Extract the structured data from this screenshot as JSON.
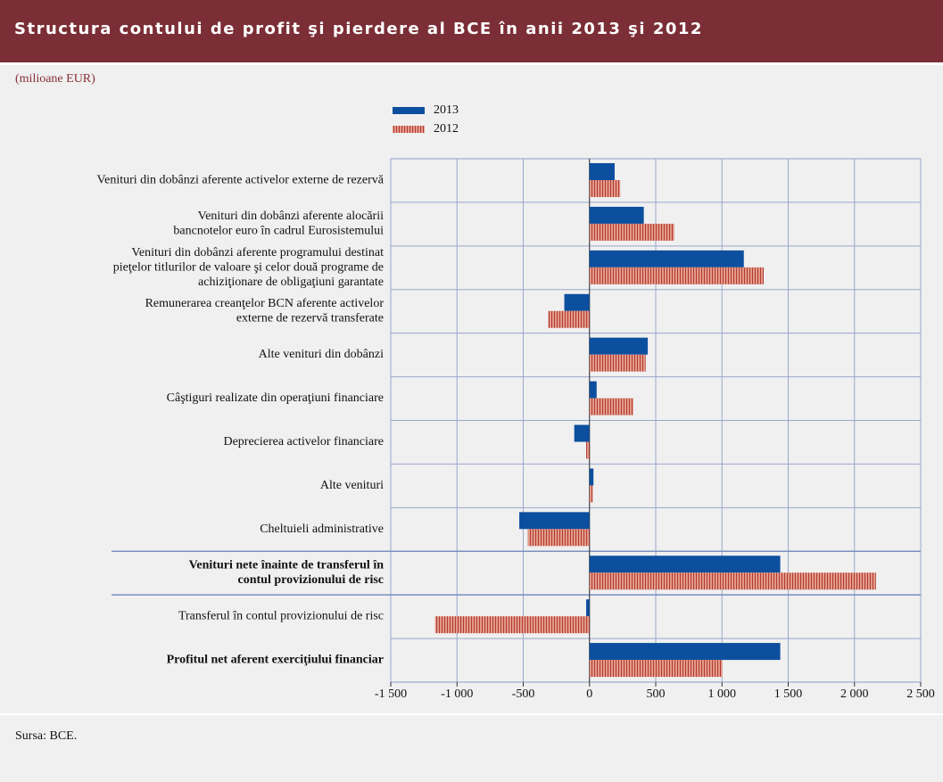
{
  "chart_data": {
    "type": "hbar",
    "title": "Structura contului de profit şi pierdere al BCE în anii 2013 şi 2012",
    "subtitle": "(milioane EUR)",
    "source": "Sursa: BCE.",
    "categories": [
      "Venituri din dobânzi aferente activelor externe de rezervă",
      "Venituri din dobânzi aferente alocării\nbancnotelor euro în cadrul Eurosistemului",
      "Venituri din dobânzi aferente programului destinat\npieţelor titlurilor de valoare şi celor două programe de\nachiziţionare de obligaţiuni garantate",
      "Remunerarea creanţelor BCN aferente activelor\nexterne de rezervă transferate",
      "Alte venituri din dobânzi",
      "Câştiguri realizate din operaţiuni financiare",
      "Deprecierea activelor financiare",
      "Alte venituri",
      "Cheltuieli administrative",
      "Venituri nete înainte de transferul în\ncontul provizionului de risc",
      "Transferul în contul provizionului de risc",
      "Profitul net aferent exerciţiului financiar"
    ],
    "bold_categories": [
      9,
      11
    ],
    "series": [
      {
        "name": "2013",
        "color": "#0c4f9e",
        "values": [
          190,
          410,
          1165,
          -190,
          440,
          54,
          -115,
          30,
          -530,
          1440,
          -25,
          1440
        ]
      },
      {
        "name": "2012",
        "color": "#e39a87",
        "pattern": "vertical-stripes",
        "values": [
          232,
          640,
          1315,
          -312,
          424,
          330,
          -25,
          25,
          -465,
          2162,
          -1166,
          1003
        ]
      }
    ],
    "xlim": [
      -1500,
      2500
    ],
    "xticks": [
      {
        "value": -1500,
        "label": "-1 500"
      },
      {
        "value": -1000,
        "label": "-1 000"
      },
      -500,
      0,
      500,
      {
        "value": 1000,
        "label": "1 000"
      },
      {
        "value": 1500,
        "label": "1 500"
      },
      {
        "value": 2000,
        "label": "2 000"
      },
      {
        "value": 2500,
        "label": "2 500"
      }
    ],
    "grid": true
  }
}
